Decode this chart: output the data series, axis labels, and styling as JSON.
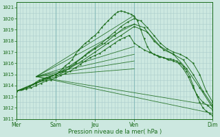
{
  "xlabel": "Pression niveau de la mer( hPa )",
  "bg_color": "#cce8e0",
  "grid_color_minor": "#aacccc",
  "grid_color_major": "#88bbbb",
  "line_color": "#1a6b1a",
  "ylim": [
    1011.0,
    1021.5
  ],
  "xlim": [
    0,
    120
  ],
  "yticks": [
    1011,
    1012,
    1013,
    1014,
    1015,
    1016,
    1017,
    1018,
    1019,
    1020,
    1021
  ],
  "xtick_positions": [
    0,
    24,
    48,
    72,
    120
  ],
  "xtick_labels": [
    "Mer",
    "Sam",
    "Jeu",
    "Ven",
    "Dim"
  ],
  "day_vlines": [
    0,
    24,
    48,
    72,
    120
  ],
  "fan_lines": [
    {
      "x": [
        12,
        72
      ],
      "y": [
        1014.8,
        1020.3
      ]
    },
    {
      "x": [
        12,
        72
      ],
      "y": [
        1014.8,
        1019.5
      ]
    },
    {
      "x": [
        12,
        72
      ],
      "y": [
        1014.8,
        1017.5
      ]
    },
    {
      "x": [
        12,
        72
      ],
      "y": [
        1014.8,
        1016.8
      ]
    },
    {
      "x": [
        12,
        72
      ],
      "y": [
        1014.8,
        1016.2
      ]
    },
    {
      "x": [
        12,
        72
      ],
      "y": [
        1014.8,
        1015.5
      ]
    },
    {
      "x": [
        12,
        120
      ],
      "y": [
        1014.8,
        1011.5
      ]
    },
    {
      "x": [
        12,
        120
      ],
      "y": [
        1014.8,
        1012.2
      ]
    }
  ],
  "traces": [
    {
      "x": [
        0,
        2,
        4,
        6,
        8,
        10,
        12,
        14,
        16,
        18,
        20,
        22,
        24,
        26,
        28,
        30,
        32,
        34,
        36,
        38,
        40,
        42,
        44,
        46,
        48,
        50,
        52,
        54,
        56,
        58,
        60,
        62,
        64,
        66,
        68,
        70,
        72,
        74,
        76,
        78,
        80,
        82,
        84,
        86,
        88,
        90,
        92,
        94,
        96,
        98,
        100,
        102,
        104,
        106,
        108,
        110,
        112,
        114,
        116,
        118,
        120
      ],
      "y": [
        1013.5,
        1013.6,
        1013.7,
        1013.8,
        1013.9,
        1014.1,
        1014.3,
        1014.5,
        1014.6,
        1014.7,
        1014.8,
        1014.9,
        1015.0,
        1015.2,
        1015.5,
        1015.8,
        1016.0,
        1016.3,
        1016.8,
        1017.2,
        1017.5,
        1017.8,
        1018.0,
        1018.3,
        1018.5,
        1018.8,
        1019.2,
        1019.5,
        1019.8,
        1020.1,
        1020.4,
        1020.6,
        1020.7,
        1020.6,
        1020.5,
        1020.4,
        1020.2,
        1019.8,
        1019.0,
        1018.2,
        1017.5,
        1017.0,
        1016.8,
        1016.7,
        1016.6,
        1016.5,
        1016.4,
        1016.4,
        1016.3,
        1016.2,
        1016.0,
        1015.7,
        1015.3,
        1014.8,
        1014.0,
        1013.2,
        1012.5,
        1012.0,
        1011.7,
        1011.5,
        1011.3
      ]
    },
    {
      "x": [
        0,
        4,
        8,
        12,
        16,
        20,
        24,
        28,
        32,
        36,
        40,
        44,
        48,
        52,
        56,
        60,
        64,
        68,
        72,
        76,
        80,
        84,
        88,
        92,
        96,
        100,
        104,
        108,
        112,
        116,
        120
      ],
      "y": [
        1013.5,
        1013.7,
        1013.9,
        1014.2,
        1014.5,
        1014.7,
        1015.0,
        1015.3,
        1015.7,
        1016.1,
        1016.5,
        1017.0,
        1017.4,
        1017.8,
        1018.3,
        1018.8,
        1019.3,
        1019.7,
        1020.0,
        1019.8,
        1019.2,
        1018.5,
        1017.8,
        1017.3,
        1017.0,
        1016.8,
        1016.5,
        1016.0,
        1015.0,
        1013.5,
        1012.5
      ]
    },
    {
      "x": [
        0,
        6,
        12,
        18,
        24,
        30,
        36,
        42,
        48,
        54,
        60,
        66,
        72,
        78,
        84,
        90,
        96,
        102,
        108,
        114,
        120
      ],
      "y": [
        1013.5,
        1013.8,
        1014.2,
        1014.5,
        1014.8,
        1015.3,
        1016.0,
        1016.7,
        1017.3,
        1017.8,
        1018.5,
        1019.2,
        1019.5,
        1019.2,
        1018.0,
        1017.2,
        1016.8,
        1016.3,
        1015.0,
        1013.5,
        1012.2
      ]
    },
    {
      "x": [
        0,
        8,
        16,
        24,
        32,
        40,
        48,
        56,
        64,
        72,
        80,
        88,
        96,
        104,
        112,
        120
      ],
      "y": [
        1013.5,
        1014.0,
        1014.5,
        1015.0,
        1015.5,
        1016.2,
        1017.0,
        1017.8,
        1018.5,
        1019.3,
        1018.8,
        1017.5,
        1016.8,
        1015.5,
        1013.8,
        1012.0
      ]
    },
    {
      "x": [
        0,
        3,
        6,
        9,
        12,
        15,
        18,
        21,
        24,
        27,
        30,
        33,
        36,
        39,
        42,
        45,
        48,
        51,
        54,
        57,
        60,
        63,
        66,
        69,
        72,
        75,
        78,
        81,
        84,
        87,
        90,
        93,
        96,
        99,
        102,
        105,
        108,
        111,
        114,
        117,
        120
      ],
      "y": [
        1013.5,
        1013.6,
        1013.7,
        1013.8,
        1014.0,
        1014.2,
        1014.4,
        1014.5,
        1014.7,
        1014.9,
        1015.1,
        1015.3,
        1015.6,
        1015.9,
        1016.2,
        1016.5,
        1016.7,
        1016.9,
        1017.2,
        1017.5,
        1017.8,
        1018.1,
        1018.3,
        1018.5,
        1017.8,
        1017.5,
        1017.2,
        1017.0,
        1016.8,
        1016.6,
        1016.5,
        1016.3,
        1016.2,
        1016.0,
        1015.5,
        1014.8,
        1013.8,
        1013.0,
        1012.5,
        1012.2,
        1011.8
      ]
    }
  ]
}
